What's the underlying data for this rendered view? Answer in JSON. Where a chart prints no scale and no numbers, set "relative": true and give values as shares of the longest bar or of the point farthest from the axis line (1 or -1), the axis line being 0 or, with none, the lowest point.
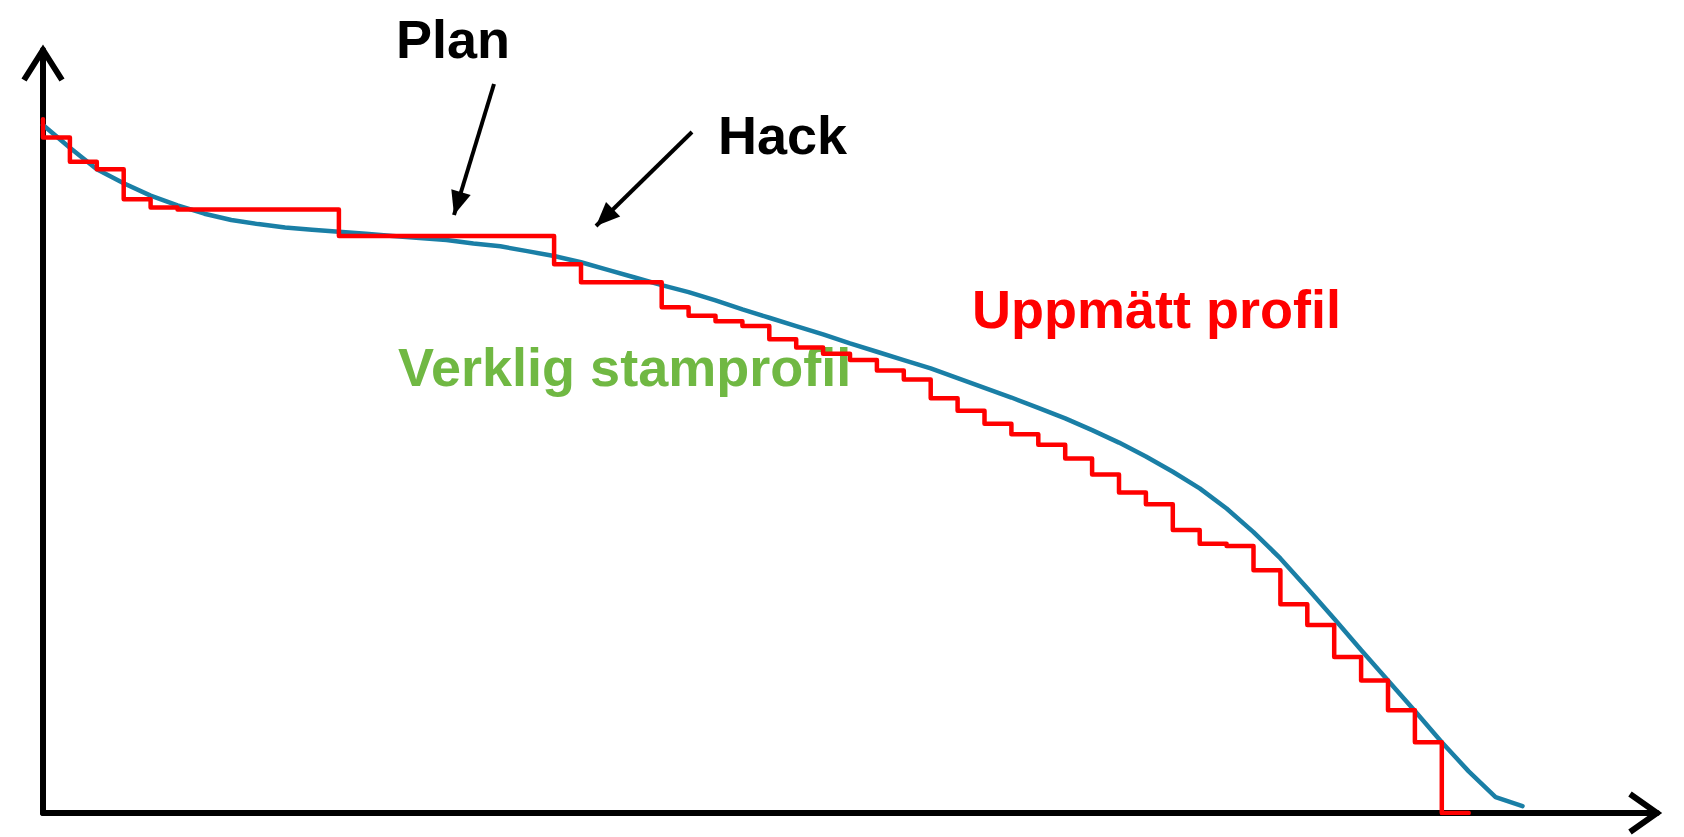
{
  "chart_data": {
    "type": "line",
    "relative": true,
    "grid": false,
    "legend": false,
    "marker": "none",
    "line_style": "solid",
    "categories": [
      null,
      null,
      null,
      null,
      null,
      null,
      null,
      null,
      null,
      null,
      null,
      null,
      null,
      null,
      null,
      null,
      null,
      null,
      null,
      null,
      null,
      null,
      null,
      null,
      null,
      null,
      null,
      null,
      null,
      null,
      null,
      null,
      null,
      null,
      null,
      null,
      null,
      null,
      null,
      null,
      null,
      null,
      null,
      null,
      null,
      null,
      null,
      null,
      null,
      null,
      null,
      null,
      null,
      null,
      null,
      null,
      null,
      null,
      null,
      null,
      null
    ],
    "series": [
      {
        "name": "Verklig stamprofil",
        "color": "#1a7fa6",
        "values": [
          0.992,
          0.959,
          0.928,
          0.908,
          0.89,
          0.876,
          0.864,
          0.855,
          0.849,
          0.844,
          0.841,
          0.838,
          0.835,
          0.832,
          0.829,
          0.826,
          0.821,
          0.817,
          0.81,
          0.803,
          0.794,
          0.783,
          0.772,
          0.761,
          0.751,
          0.739,
          0.726,
          0.714,
          0.702,
          0.69,
          0.677,
          0.665,
          0.653,
          0.641,
          0.627,
          0.613,
          0.599,
          0.584,
          0.569,
          0.552,
          0.534,
          0.514,
          0.492,
          0.468,
          0.439,
          0.405,
          0.367,
          0.324,
          0.28,
          0.235,
          0.191,
          0.147,
          0.102,
          0.06,
          0.023,
          0.01,
          null,
          null,
          null,
          null,
          null
        ]
      },
      {
        "name": "Uppmätt profil",
        "type": "step",
        "color": "#ff0000",
        "values": [
          1.0,
          0.974,
          0.939,
          0.928,
          0.885,
          0.873,
          0.87,
          0.87,
          0.87,
          0.87,
          0.87,
          0.87,
          0.832,
          0.832,
          0.832,
          0.832,
          0.832,
          0.832,
          0.832,
          0.832,
          0.791,
          0.765,
          0.765,
          0.765,
          0.729,
          0.717,
          0.709,
          0.702,
          0.683,
          0.671,
          0.662,
          0.653,
          0.638,
          0.625,
          0.598,
          0.58,
          0.561,
          0.546,
          0.531,
          0.511,
          0.488,
          0.462,
          0.445,
          0.408,
          0.388,
          0.385,
          0.35,
          0.301,
          0.271,
          0.225,
          0.191,
          0.148,
          0.102,
          0,
          null,
          null,
          null,
          null,
          null,
          null,
          null
        ]
      }
    ],
    "annotations": [
      "Plan",
      "Hack"
    ]
  }
}
